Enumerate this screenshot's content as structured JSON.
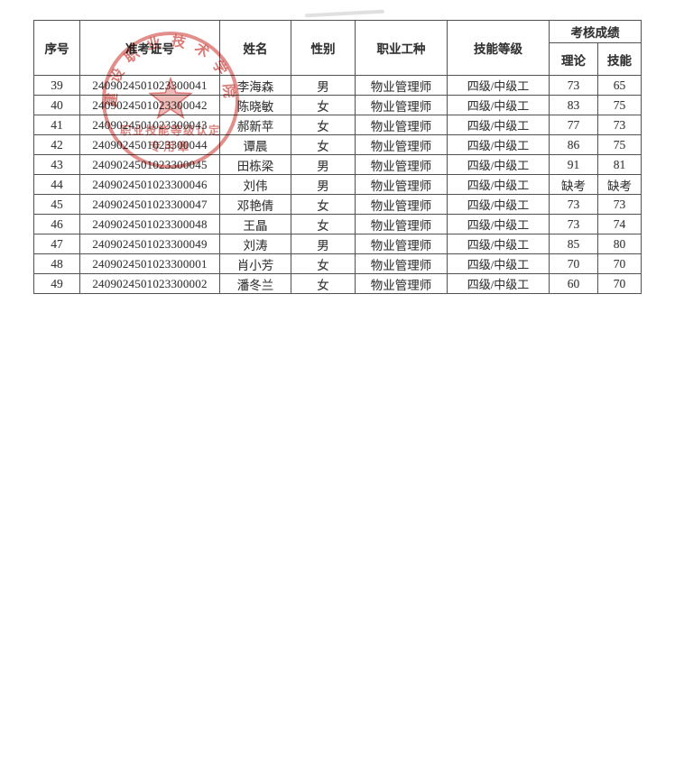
{
  "page": {
    "background_color": "#ffffff"
  },
  "table": {
    "headers": {
      "index": "序号",
      "admission_no": "准考证号",
      "name": "姓名",
      "gender": "性别",
      "occupation": "职业工种",
      "skill_level": "技能等级",
      "score_group": "考核成绩",
      "theory": "理论",
      "skill": "技能"
    },
    "rows": [
      {
        "index": "39",
        "id": "2409024501023300041",
        "name": "李海森",
        "gender": "男",
        "occupation": "物业管理师",
        "level": "四级/中级工",
        "theory": "73",
        "skill": "65"
      },
      {
        "index": "40",
        "id": "2409024501023300042",
        "name": "陈晓敏",
        "gender": "女",
        "occupation": "物业管理师",
        "level": "四级/中级工",
        "theory": "83",
        "skill": "75"
      },
      {
        "index": "41",
        "id": "2409024501023300043",
        "name": "郝新苹",
        "gender": "女",
        "occupation": "物业管理师",
        "level": "四级/中级工",
        "theory": "77",
        "skill": "73"
      },
      {
        "index": "42",
        "id": "2409024501023300044",
        "name": "谭晨",
        "gender": "女",
        "occupation": "物业管理师",
        "level": "四级/中级工",
        "theory": "86",
        "skill": "75"
      },
      {
        "index": "43",
        "id": "2409024501023300045",
        "name": "田栋梁",
        "gender": "男",
        "occupation": "物业管理师",
        "level": "四级/中级工",
        "theory": "91",
        "skill": "81"
      },
      {
        "index": "44",
        "id": "2409024501023300046",
        "name": "刘伟",
        "gender": "男",
        "occupation": "物业管理师",
        "level": "四级/中级工",
        "theory": "缺考",
        "skill": "缺考"
      },
      {
        "index": "45",
        "id": "2409024501023300047",
        "name": "邓艳倩",
        "gender": "女",
        "occupation": "物业管理师",
        "level": "四级/中级工",
        "theory": "73",
        "skill": "73"
      },
      {
        "index": "46",
        "id": "2409024501023300048",
        "name": "王晶",
        "gender": "女",
        "occupation": "物业管理师",
        "level": "四级/中级工",
        "theory": "73",
        "skill": "74"
      },
      {
        "index": "47",
        "id": "2409024501023300049",
        "name": "刘涛",
        "gender": "男",
        "occupation": "物业管理师",
        "level": "四级/中级工",
        "theory": "85",
        "skill": "80"
      },
      {
        "index": "48",
        "id": "2409024501023300001",
        "name": "肖小芳",
        "gender": "女",
        "occupation": "物业管理师",
        "level": "四级/中级工",
        "theory": "70",
        "skill": "70"
      },
      {
        "index": "49",
        "id": "2409024501023300002",
        "name": "潘冬兰",
        "gender": "女",
        "occupation": "物业管理师",
        "level": "四级/中级工",
        "theory": "60",
        "skill": "70"
      }
    ]
  },
  "stamp": {
    "arc_text": "建设职业技术学院",
    "center_line": "职业技能等级认定",
    "bottom_line": "专用章",
    "ink_color": "#cf4f49"
  }
}
